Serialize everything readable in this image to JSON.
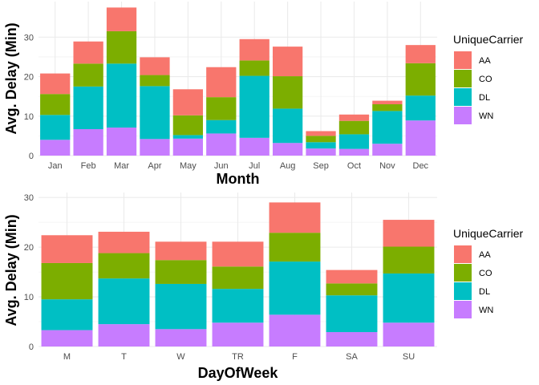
{
  "colors": {
    "AA": "#F8766D",
    "CO": "#7CAE00",
    "DL": "#00BFC4",
    "WN": "#C77CFF",
    "grid": "#ebebeb"
  },
  "chart_data": [
    {
      "type": "bar",
      "stacked": true,
      "xlabel": "Month",
      "ylabel": "Avg. Delay (Min)",
      "ylim": [
        0,
        39
      ],
      "yticks": [
        0,
        10,
        20,
        30
      ],
      "legend_title": "UniqueCarrier",
      "legend_entries": [
        "AA",
        "CO",
        "DL",
        "WN"
      ],
      "legend_position": "right",
      "grid": true,
      "categories": [
        "Jan",
        "Feb",
        "Mar",
        "Apr",
        "May",
        "Jun",
        "Jul",
        "Aug",
        "Sep",
        "Oct",
        "Nov",
        "Dec"
      ],
      "series": [
        {
          "name": "WN",
          "values": [
            4.0,
            6.7,
            7.1,
            4.2,
            4.3,
            5.6,
            4.5,
            3.2,
            1.8,
            1.7,
            3.0,
            8.9
          ]
        },
        {
          "name": "DL",
          "values": [
            6.3,
            10.8,
            16.2,
            13.4,
            0.9,
            3.4,
            15.7,
            8.7,
            1.6,
            3.7,
            8.3,
            6.3
          ]
        },
        {
          "name": "CO",
          "values": [
            5.3,
            5.8,
            8.2,
            2.8,
            5.0,
            5.8,
            3.9,
            8.2,
            1.6,
            3.4,
            1.7,
            8.2
          ]
        },
        {
          "name": "AA",
          "values": [
            5.2,
            5.6,
            6.0,
            4.5,
            6.6,
            7.6,
            5.4,
            7.5,
            1.2,
            1.6,
            0.9,
            4.6
          ]
        }
      ]
    },
    {
      "type": "bar",
      "stacked": true,
      "xlabel": "DayOfWeek",
      "ylabel": "Avg. Delay (Min)",
      "ylim": [
        0,
        31
      ],
      "yticks": [
        0,
        10,
        20,
        30
      ],
      "legend_title": "UniqueCarrier",
      "legend_entries": [
        "AA",
        "CO",
        "DL",
        "WN"
      ],
      "legend_position": "right",
      "grid": true,
      "categories": [
        "M",
        "T",
        "W",
        "TR",
        "F",
        "SA",
        "SU"
      ],
      "series": [
        {
          "name": "WN",
          "values": [
            3.3,
            4.5,
            3.5,
            4.8,
            6.4,
            2.9,
            4.8
          ]
        },
        {
          "name": "DL",
          "values": [
            6.2,
            9.2,
            9.1,
            6.8,
            10.7,
            7.4,
            9.9
          ]
        },
        {
          "name": "CO",
          "values": [
            7.3,
            5.1,
            4.8,
            4.5,
            5.8,
            2.4,
            5.4
          ]
        },
        {
          "name": "AA",
          "values": [
            5.6,
            4.3,
            3.7,
            5.0,
            6.1,
            2.7,
            5.4
          ]
        }
      ]
    }
  ]
}
